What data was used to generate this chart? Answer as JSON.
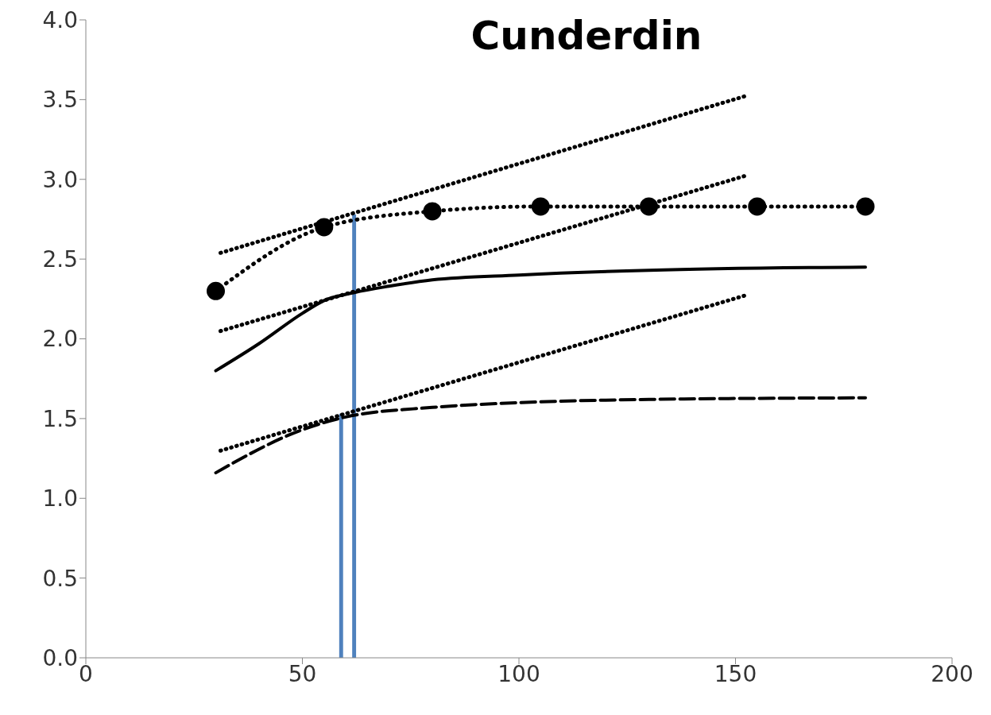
{
  "chart_data": {
    "type": "line",
    "title": "Cunderdin",
    "xlim": [
      0,
      200
    ],
    "xticks": [
      0,
      50,
      100,
      150,
      200
    ],
    "ylim": [
      0,
      4
    ],
    "yticks": [
      {
        "value": 0,
        "label": "0.0"
      },
      {
        "value": 0.5,
        "label": "0.5"
      },
      {
        "value": 1,
        "label": "1.0"
      },
      {
        "value": 1.5,
        "label": "1.5"
      },
      {
        "value": 2,
        "label": "2.0"
      },
      {
        "value": 2.5,
        "label": "2.5"
      },
      {
        "value": 3,
        "label": "3.0"
      },
      {
        "value": 3.5,
        "label": "3.5"
      },
      {
        "value": 4,
        "label": "4.0"
      }
    ],
    "series": [
      {
        "type": "bar",
        "color": "#4f81bd",
        "x": [
          59,
          62
        ],
        "values": [
          1.53,
          2.78
        ]
      },
      {
        "color": "#000000",
        "line_style": "dotted",
        "marker": "circle",
        "x": [
          30,
          55,
          80,
          105,
          130,
          155,
          180
        ],
        "values": [
          2.3,
          2.7,
          2.8,
          2.83,
          2.83,
          2.83,
          2.83
        ]
      },
      {
        "color": "#000000",
        "line_style": "dotted",
        "marker": "none",
        "x": [
          30,
          152
        ],
        "values": [
          2.53,
          3.52
        ]
      },
      {
        "color": "#000000",
        "line_style": "dotted",
        "marker": "none",
        "x": [
          30,
          152
        ],
        "values": [
          2.04,
          3.02
        ]
      },
      {
        "color": "#000000",
        "line_style": "dotted",
        "marker": "none",
        "x": [
          30,
          152
        ],
        "values": [
          1.29,
          2.27
        ]
      },
      {
        "color": "#000000",
        "line_style": "solid",
        "marker": "none",
        "x": [
          30,
          40,
          50,
          55,
          62,
          70,
          80,
          100,
          130,
          180
        ],
        "values": [
          1.8,
          1.97,
          2.16,
          2.24,
          2.29,
          2.33,
          2.37,
          2.4,
          2.43,
          2.45
        ]
      },
      {
        "color": "#000000",
        "line_style": "dashed",
        "marker": "none",
        "x": [
          30,
          50,
          60,
          80,
          100,
          130,
          180
        ],
        "values": [
          1.16,
          1.43,
          1.51,
          1.57,
          1.6,
          1.62,
          1.63
        ]
      }
    ]
  }
}
